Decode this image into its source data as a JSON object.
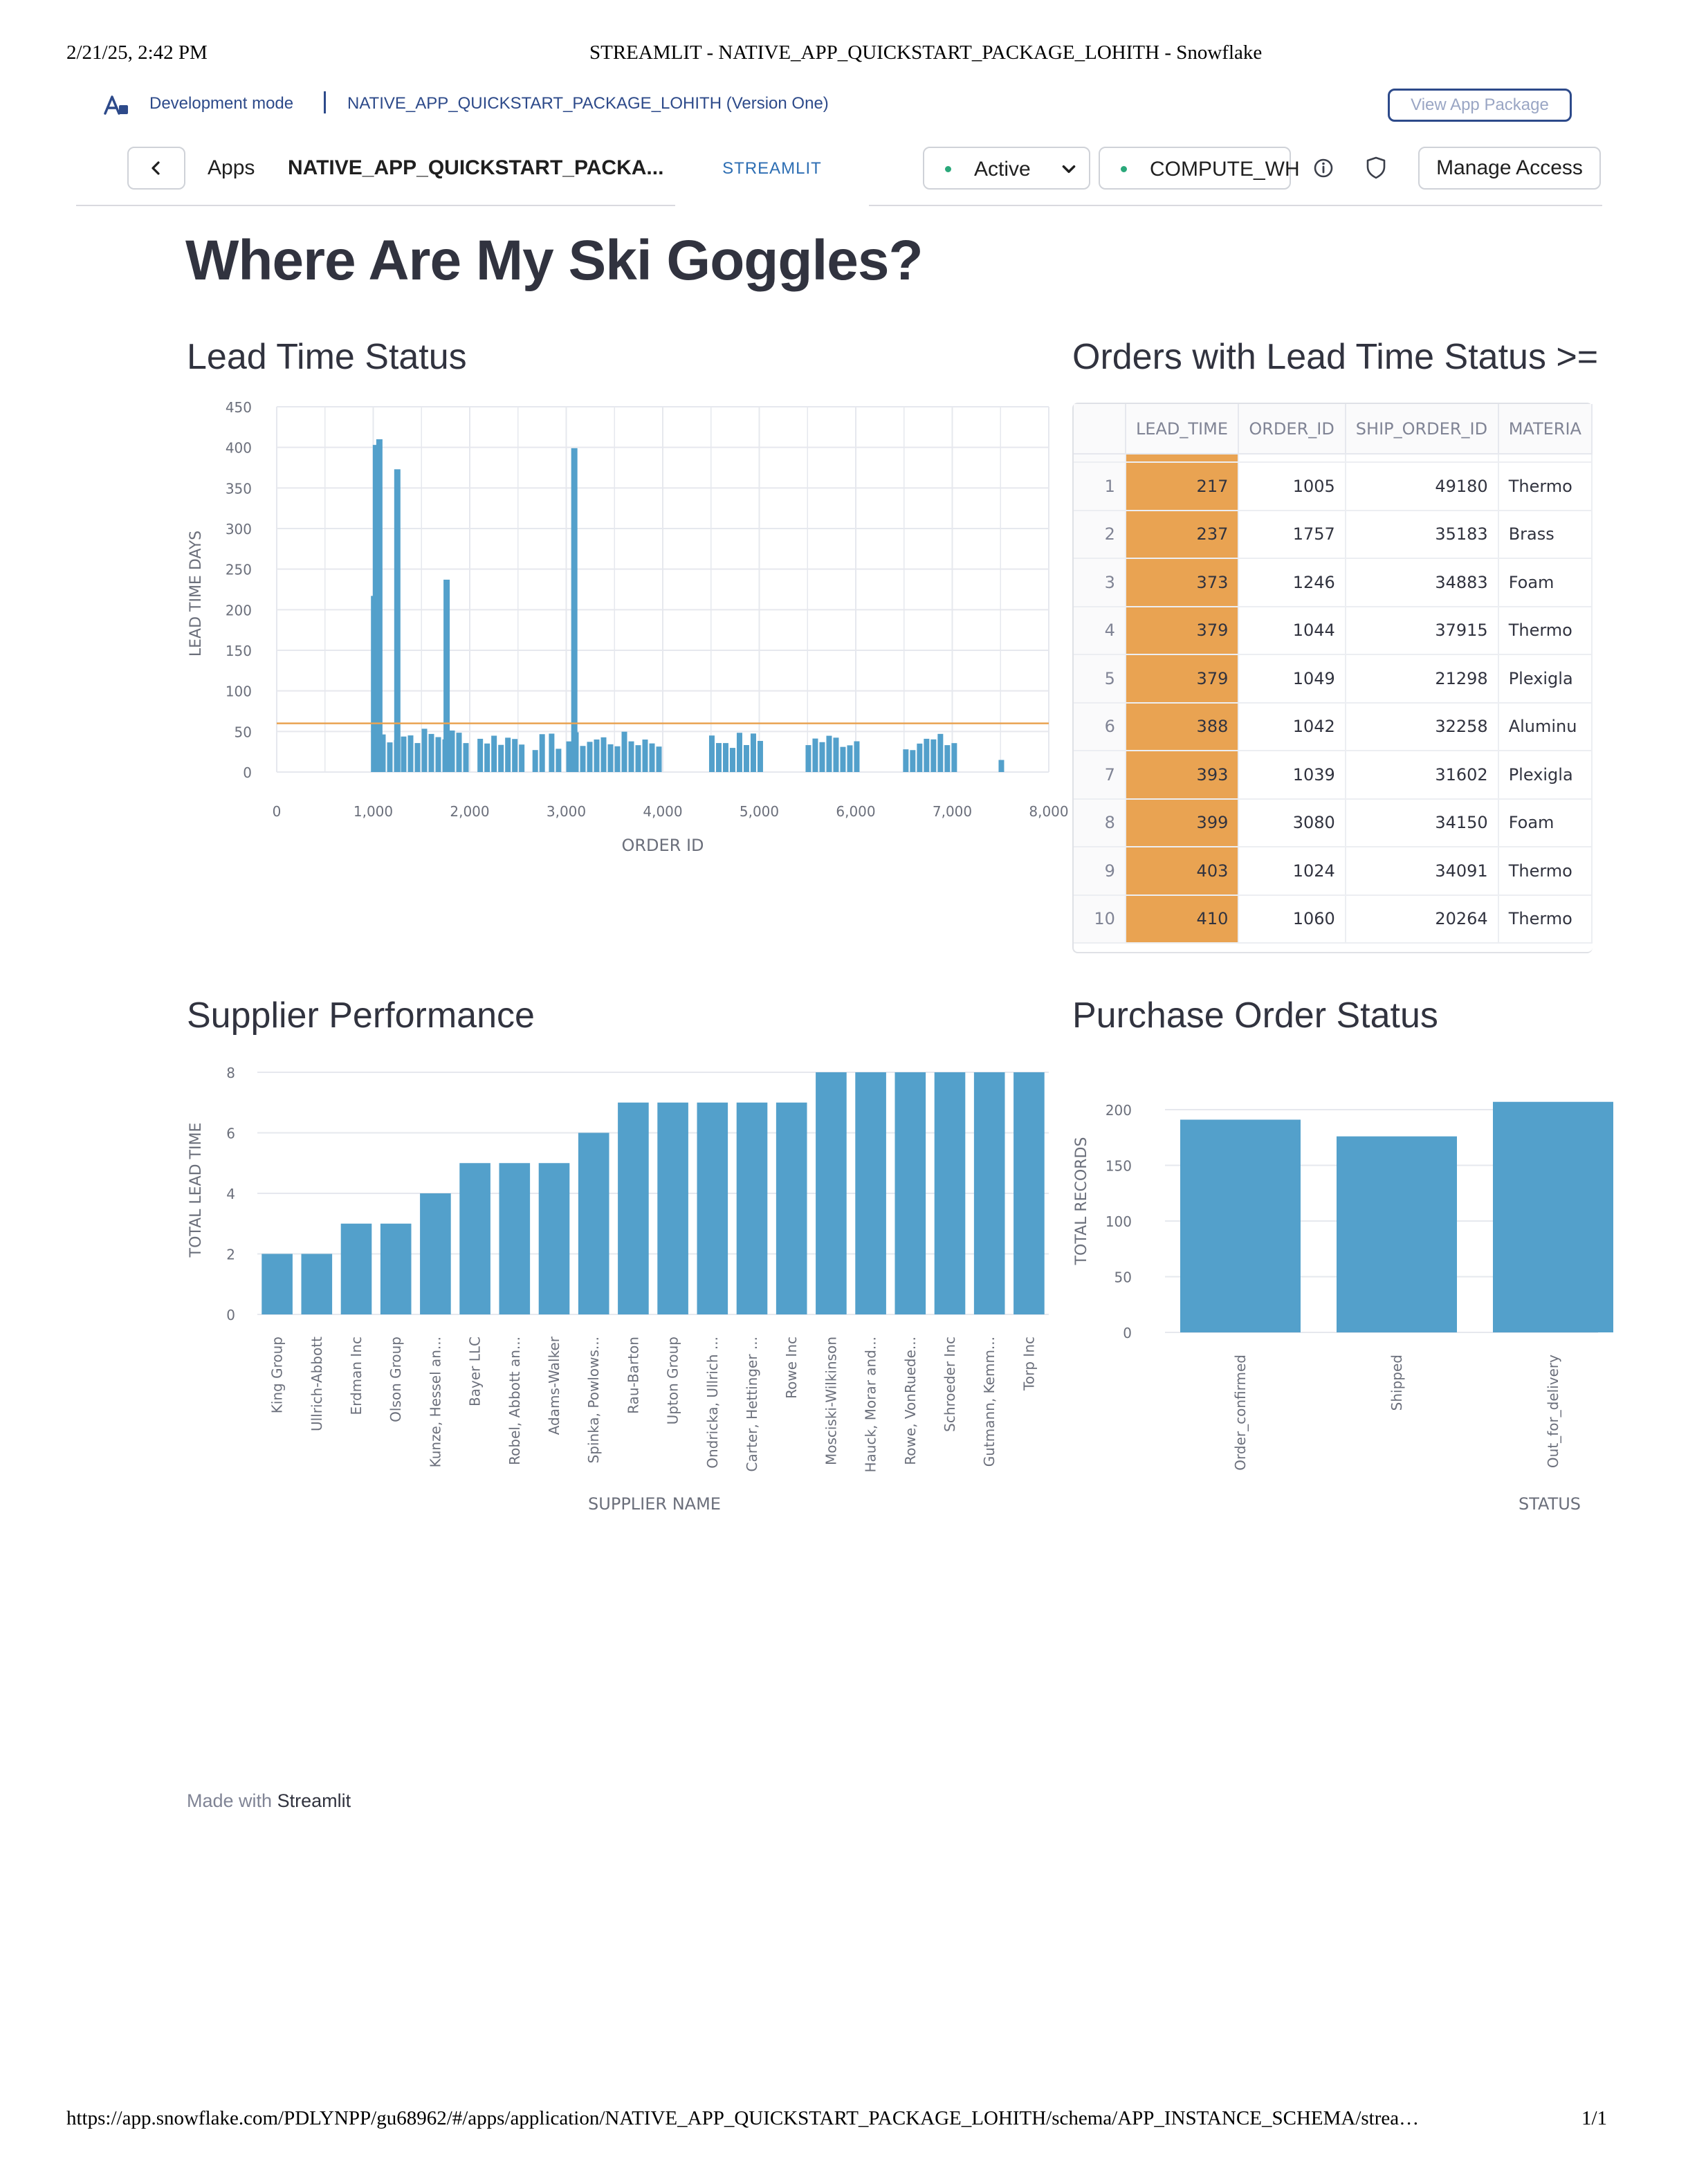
{
  "print": {
    "date": "2/21/25, 2:42 PM",
    "title": "STREAMLIT - NATIVE_APP_QUICKSTART_PACKAGE_LOHITH - Snowflake",
    "url": "https://app.snowflake.com/PDLYNPP/gu68962/#/apps/application/NATIVE_APP_QUICKSTART_PACKAGE_LOHITH/schema/APP_INSTANCE_SCHEMA/strea…",
    "page": "1/1"
  },
  "dev_bar": {
    "mode_label": "Development mode",
    "package_label": "NATIVE_APP_QUICKSTART_PACKAGE_LOHITH (Version One)",
    "view_button": "View App Package"
  },
  "header": {
    "apps_label": "Apps",
    "package_label": "NATIVE_APP_QUICKSTART_PACKA...",
    "tab_label": "STREAMLIT",
    "status_value": "Active",
    "warehouse_value": "COMPUTE_WH",
    "manage_access": "Manage Access",
    "status_color": "#2aa87a"
  },
  "main": {
    "title": "Where Are My Ski Goggles?",
    "lead_section_title": "Lead Time Status",
    "orders_section_title": "Orders with Lead Time Status >=",
    "supplier_section_title": "Supplier Performance",
    "po_section_title": "Purchase Order Status",
    "footer_made_with": "Made with",
    "footer_brand": "Streamlit"
  },
  "colors": {
    "bar": "#53a0cb",
    "threshold_line": "#e9a352",
    "lead_highlight": "#e9a352"
  },
  "orders_table": {
    "columns": [
      "LEAD_TIME",
      "ORDER_ID",
      "SHIP_ORDER_ID",
      "MATERIA"
    ],
    "rows": [
      {
        "idx": "1",
        "lead_time": "217",
        "order_id": "1005",
        "ship_order_id": "49180",
        "material": "Thermo"
      },
      {
        "idx": "2",
        "lead_time": "237",
        "order_id": "1757",
        "ship_order_id": "35183",
        "material": "Brass"
      },
      {
        "idx": "3",
        "lead_time": "373",
        "order_id": "1246",
        "ship_order_id": "34883",
        "material": "Foam"
      },
      {
        "idx": "4",
        "lead_time": "379",
        "order_id": "1044",
        "ship_order_id": "37915",
        "material": "Thermo"
      },
      {
        "idx": "5",
        "lead_time": "379",
        "order_id": "1049",
        "ship_order_id": "21298",
        "material": "Plexigla"
      },
      {
        "idx": "6",
        "lead_time": "388",
        "order_id": "1042",
        "ship_order_id": "32258",
        "material": "Aluminu"
      },
      {
        "idx": "7",
        "lead_time": "393",
        "order_id": "1039",
        "ship_order_id": "31602",
        "material": "Plexigla"
      },
      {
        "idx": "8",
        "lead_time": "399",
        "order_id": "3080",
        "ship_order_id": "34150",
        "material": "Foam"
      },
      {
        "idx": "9",
        "lead_time": "403",
        "order_id": "1024",
        "ship_order_id": "34091",
        "material": "Thermo"
      },
      {
        "idx": "10",
        "lead_time": "410",
        "order_id": "1060",
        "ship_order_id": "20264",
        "material": "Thermo"
      }
    ]
  },
  "chart_data": [
    {
      "type": "bar",
      "xlabel": "ORDER ID",
      "ylabel": "LEAD TIME DAYS",
      "xlim": [
        0,
        8000
      ],
      "ylim": [
        0,
        450
      ],
      "xticks": [
        "0",
        "1,000",
        "2,000",
        "3,000",
        "4,000",
        "5,000",
        "6,000",
        "7,000",
        "8,000"
      ],
      "yticks": [
        "0",
        "50",
        "100",
        "150",
        "200",
        "250",
        "300",
        "350",
        "400",
        "450"
      ],
      "threshold": 60,
      "spikes": [
        {
          "x": 1005,
          "y": 217
        },
        {
          "x": 1024,
          "y": 403
        },
        {
          "x": 1039,
          "y": 393
        },
        {
          "x": 1042,
          "y": 388
        },
        {
          "x": 1044,
          "y": 379
        },
        {
          "x": 1049,
          "y": 379
        },
        {
          "x": 1060,
          "y": 410
        },
        {
          "x": 1246,
          "y": 373
        },
        {
          "x": 1757,
          "y": 237
        },
        {
          "x": 3080,
          "y": 399
        }
      ],
      "clusters": [
        {
          "from": 1000,
          "to": 1980,
          "base": 48
        },
        {
          "from": 2080,
          "to": 2520,
          "base": 44
        },
        {
          "from": 2650,
          "to": 2760,
          "base": 40
        },
        {
          "from": 2820,
          "to": 2920,
          "base": 40
        },
        {
          "from": 3000,
          "to": 3990,
          "base": 42
        },
        {
          "from": 4480,
          "to": 5010,
          "base": 42
        },
        {
          "from": 5480,
          "to": 5990,
          "base": 42
        },
        {
          "from": 6490,
          "to": 7020,
          "base": 40
        },
        {
          "from": 7480,
          "to": 7520,
          "base": 18
        }
      ]
    },
    {
      "type": "bar",
      "xlabel": "SUPPLIER NAME",
      "ylabel": "TOTAL LEAD TIME",
      "ylim": [
        0,
        8
      ],
      "yticks": [
        "0",
        "2",
        "4",
        "6",
        "8"
      ],
      "categories": [
        "King Group",
        "Ullrich-Abbott",
        "Erdman Inc",
        "Olson Group",
        "Kunze, Hessel an...",
        "Bayer LLC",
        "Robel, Abbott an...",
        "Adams-Walker",
        "Spinka, Powlows...",
        "Rau-Barton",
        "Upton Group",
        "Ondricka, Ullrich ...",
        "Carter, Hettinger ...",
        "Rowe Inc",
        "Mosciski-Wilkinson",
        "Hauck, Morar and...",
        "Rowe, VonRuede...",
        "Schroeder Inc",
        "Gutmann, Kemm...",
        "Torp Inc"
      ],
      "values": [
        2,
        2,
        3,
        3,
        4,
        5,
        5,
        5,
        6,
        7,
        7,
        7,
        7,
        7,
        8,
        8,
        8,
        8,
        8,
        8
      ]
    },
    {
      "type": "bar",
      "xlabel": "STATUS",
      "ylabel": "TOTAL RECORDS",
      "ylim": [
        0,
        200
      ],
      "yticks": [
        "0",
        "50",
        "100",
        "150",
        "200"
      ],
      "categories": [
        "Order_confirmed",
        "Shipped",
        "Out_for_delivery"
      ],
      "values": [
        191,
        176,
        207
      ]
    }
  ]
}
